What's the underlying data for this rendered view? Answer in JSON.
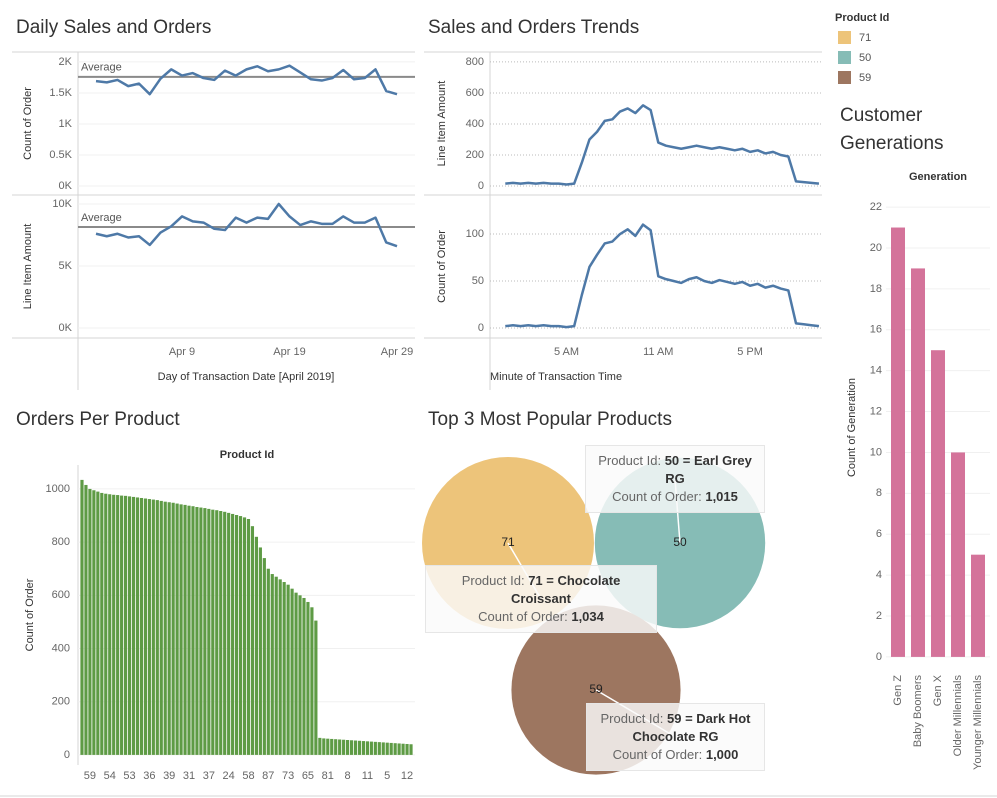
{
  "chart_data": [
    {
      "type": "line",
      "title": "Daily Sales and Orders",
      "categories": [
        null,
        null,
        null,
        null,
        null,
        null,
        null,
        null,
        "Apr 9",
        null,
        null,
        null,
        null,
        null,
        null,
        null,
        null,
        null,
        "Apr 19",
        null,
        null,
        null,
        null,
        null,
        null,
        null,
        null,
        null,
        "Apr 29"
      ],
      "x_label": "Day of Transaction Date [April 2019]",
      "panels": [
        {
          "y_label": "Count of Order",
          "ylim": [
            -145,
            2160
          ],
          "yticks": [
            {
              "value": 0,
              "label": "0K"
            },
            {
              "value": 500,
              "label": "0.5K"
            },
            {
              "value": 1000,
              "label": "1K"
            },
            {
              "value": 1500,
              "label": "1.5K"
            },
            {
              "value": 2000,
              "label": "2K"
            }
          ],
          "reference": {
            "label": "Average",
            "value": 1760
          },
          "series": [
            {
              "color": "#4e79a7",
              "values": [
                1690,
                1670,
                1710,
                1610,
                1650,
                1480,
                1730,
                1880,
                1780,
                1820,
                1740,
                1710,
                1860,
                1780,
                1880,
                1930,
                1850,
                1880,
                1940,
                1830,
                1720,
                1700,
                1740,
                1870,
                1720,
                1740,
                1880,
                1530,
                1480
              ]
            }
          ]
        },
        {
          "y_label": "Line Item Amount",
          "ylim": [
            -806,
            10726
          ],
          "yticks": [
            {
              "value": 0,
              "label": "0K"
            },
            {
              "value": 5000,
              "label": "5K"
            },
            {
              "value": 10000,
              "label": "10K"
            }
          ],
          "reference": {
            "label": "Average",
            "value": 8150
          },
          "series": [
            {
              "color": "#4e79a7",
              "values": [
                7600,
                7400,
                7600,
                7300,
                7400,
                6700,
                7700,
                8200,
                9000,
                8600,
                8500,
                8000,
                7900,
                8900,
                8500,
                8900,
                8800,
                10000,
                9000,
                8300,
                8600,
                8400,
                8400,
                9000,
                8500,
                8500,
                8900,
                6900,
                6600
              ]
            }
          ]
        }
      ]
    },
    {
      "type": "line",
      "title": "Sales and Orders Trends",
      "x": [
        60,
        90,
        120,
        150,
        180,
        210,
        240,
        270,
        300,
        330,
        360,
        390,
        420,
        450,
        480,
        510,
        540,
        570,
        600,
        630,
        660,
        690,
        720,
        750,
        780,
        810,
        840,
        870,
        900,
        930,
        960,
        990,
        1020,
        1050,
        1080,
        1110,
        1140,
        1170,
        1200,
        1230,
        1260,
        1290
      ],
      "xlim": [
        0,
        1302
      ],
      "xticks": [
        {
          "value": 300,
          "label": "5 AM"
        },
        {
          "value": 660,
          "label": "11 AM"
        },
        {
          "value": 1020,
          "label": "5 PM"
        }
      ],
      "x_label": "Minute of Transaction Time",
      "panels": [
        {
          "y_label": "Line Item Amount",
          "ylim": [
            -58,
            864
          ],
          "yticks": [
            0,
            200,
            400,
            600,
            800
          ],
          "series": [
            {
              "color": "#4e79a7",
              "values": [
                15,
                20,
                15,
                20,
                15,
                20,
                15,
                15,
                10,
                15,
                150,
                300,
                350,
                420,
                430,
                480,
                500,
                470,
                520,
                490,
                280,
                260,
                250,
                240,
                250,
                260,
                250,
                240,
                250,
                240,
                230,
                240,
                220,
                230,
                210,
                220,
                200,
                190,
                30,
                25,
                20,
                15
              ]
            }
          ]
        },
        {
          "y_label": "Count of Order",
          "ylim": [
            -10.6,
            141.5
          ],
          "yticks": [
            0,
            50,
            100
          ],
          "series": [
            {
              "color": "#4e79a7",
              "values": [
                2,
                3,
                2,
                3,
                2,
                3,
                2,
                2,
                1,
                2,
                35,
                65,
                78,
                90,
                92,
                100,
                105,
                98,
                110,
                104,
                55,
                52,
                50,
                48,
                52,
                54,
                50,
                48,
                51,
                49,
                47,
                49,
                45,
                47,
                43,
                45,
                42,
                40,
                5,
                4,
                3,
                2
              ]
            }
          ]
        }
      ]
    },
    {
      "type": "bar",
      "title": "Orders Per Product",
      "header": "Product Id",
      "y_label": "Count of Order",
      "color": "#5e9b45",
      "categories": [
        null,
        null,
        "59",
        null,
        null,
        null,
        null,
        "54",
        null,
        null,
        null,
        null,
        "53",
        null,
        null,
        null,
        null,
        "36",
        null,
        null,
        null,
        null,
        "39",
        null,
        null,
        null,
        null,
        "31",
        null,
        null,
        null,
        null,
        "37",
        null,
        null,
        null,
        null,
        "24",
        null,
        null,
        null,
        null,
        "58",
        null,
        null,
        null,
        null,
        "87",
        null,
        null,
        null,
        null,
        "73",
        null,
        null,
        null,
        null,
        "65",
        null,
        null,
        null,
        null,
        "81",
        null,
        null,
        null,
        null,
        "8",
        null,
        null,
        null,
        null,
        "11",
        null,
        null,
        null,
        null,
        "5",
        null,
        null,
        null,
        null,
        "12",
        null
      ],
      "values": [
        1034,
        1015,
        1000,
        995,
        990,
        985,
        982,
        980,
        978,
        977,
        975,
        974,
        972,
        970,
        968,
        966,
        964,
        962,
        960,
        958,
        955,
        952,
        950,
        948,
        945,
        942,
        940,
        937,
        935,
        932,
        930,
        928,
        925,
        922,
        920,
        917,
        914,
        910,
        906,
        902,
        898,
        893,
        887,
        860,
        820,
        780,
        740,
        700,
        680,
        670,
        660,
        650,
        640,
        625,
        610,
        600,
        590,
        575,
        555,
        505,
        64,
        62,
        61,
        60,
        59,
        58,
        57,
        56,
        55,
        54,
        53,
        52,
        51,
        50,
        49,
        48,
        47,
        46,
        45,
        44,
        43,
        42,
        41,
        40
      ],
      "ylim": [
        -38,
        1090
      ],
      "yticks": [
        0,
        200,
        400,
        600,
        800,
        1000
      ]
    },
    {
      "type": "bubble",
      "title": "Top 3 Most Popular Products",
      "legend_title": "Product Id",
      "tooltip_labels": [
        "Product Id:",
        "Count of Order:"
      ],
      "series": [
        {
          "name": "71",
          "color": "#edc47a",
          "values": [
            1034
          ],
          "value_labels": [
            "1,034"
          ],
          "tooltip": "71 = Chocolate Croissant"
        },
        {
          "name": "50",
          "color": "#86bcb6",
          "values": [
            1015
          ],
          "value_labels": [
            "1,015"
          ],
          "tooltip": "50 = Earl Grey RG"
        },
        {
          "name": "59",
          "color": "#9d7660",
          "values": [
            1000
          ],
          "value_labels": [
            "1,000"
          ],
          "tooltip": "59 = Dark Hot Chocolate RG"
        }
      ]
    },
    {
      "type": "bar",
      "title": "Customer Generations",
      "header": "Generation",
      "y_label": "Count of Generation",
      "color": "#d4739a",
      "categories": [
        "Gen Z",
        "Baby Boomers",
        "Gen X",
        "Older Millennials",
        "Younger Millennials"
      ],
      "values": [
        21,
        19,
        15,
        10,
        5
      ],
      "ylim": [
        -0.64,
        23.08
      ],
      "yticks": [
        0,
        2,
        4,
        6,
        8,
        10,
        12,
        14,
        16,
        18,
        20,
        22
      ]
    }
  ]
}
